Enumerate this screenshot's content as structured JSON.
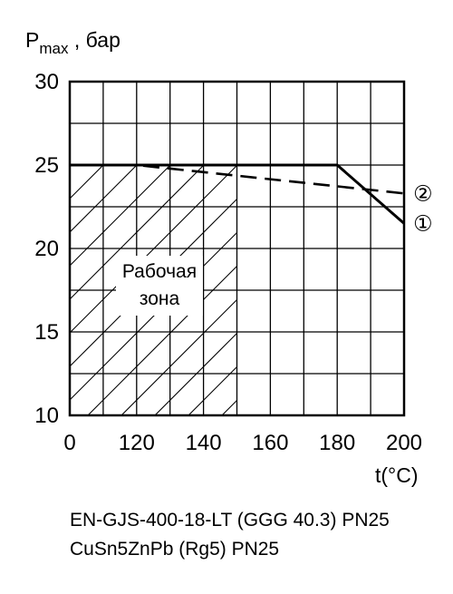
{
  "chart_data": {
    "type": "line",
    "ylabel_main": "P",
    "ylabel_sub": "max",
    "ylabel_unit": " , бар",
    "xlabel": "t(°C)",
    "x_ticks": [
      "0",
      "120",
      "140",
      "160",
      "180",
      "200"
    ],
    "y_ticks": [
      10,
      15,
      20,
      25,
      30
    ],
    "ylim": [
      10,
      30
    ],
    "grid": true,
    "zone_label_line1": "Рабочая",
    "zone_label_line2": "зона",
    "working_zone": {
      "x_from": "0",
      "x_to": "150",
      "y_from": 10,
      "y_to": 25
    },
    "series": [
      {
        "id": "1",
        "marker": "①",
        "style": "solid",
        "points": [
          {
            "x": 0,
            "y": 25
          },
          {
            "x": 180,
            "y": 25
          },
          {
            "x": 200,
            "y": 21.5
          }
        ]
      },
      {
        "id": "2",
        "marker": "②",
        "style": "dashed",
        "points": [
          {
            "x": 0,
            "y": 25
          },
          {
            "x": 120,
            "y": 25
          },
          {
            "x": 200,
            "y": 23.3
          }
        ]
      }
    ]
  },
  "legend": {
    "line1": "EN-GJS-400-18-LT (GGG 40.3) PN25",
    "line2": "CuSn5ZnPb (Rg5) PN25"
  }
}
